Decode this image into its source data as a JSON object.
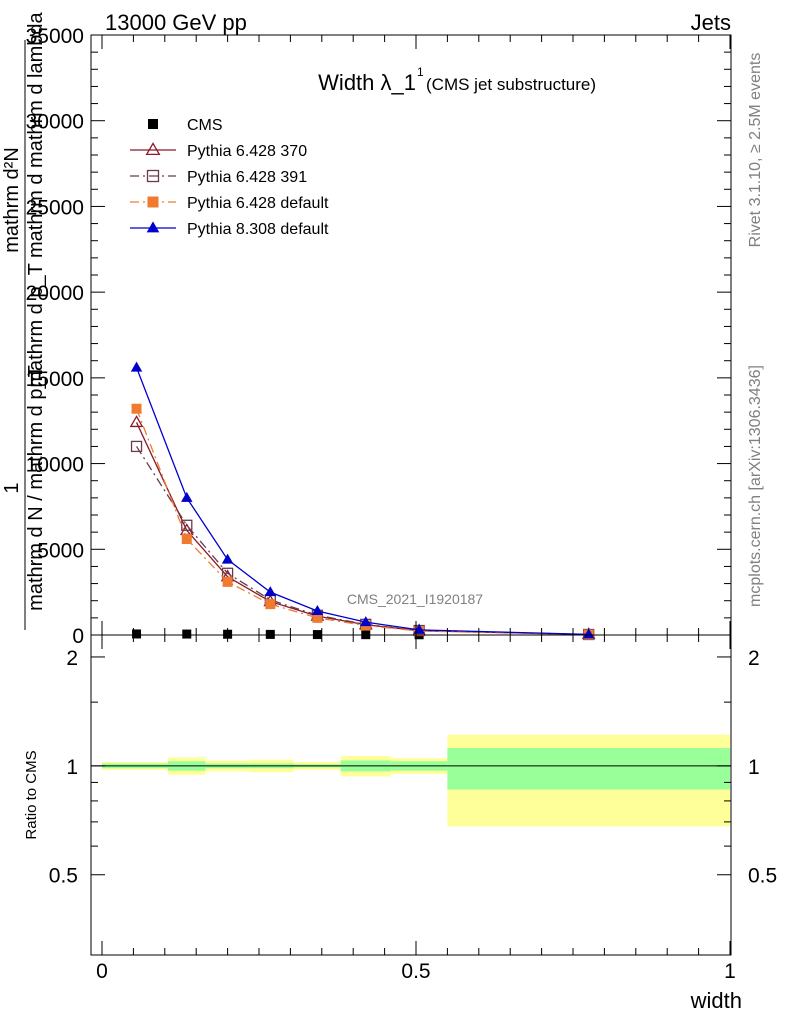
{
  "header": {
    "energy_label": "13000 GeV pp",
    "process_label": "Jets",
    "side_label_top": "Rivet 3.1.10, ≥ 2.5M events",
    "side_label_bottom": "mcplots.cern.ch [arXiv:1306.3436]",
    "watermark": "CMS_2021_I1920187"
  },
  "chart_data": [
    {
      "type": "line",
      "title": "Width λ_1",
      "title_superscript": "1",
      "subtitle": "(CMS jet substructure)",
      "ylabel_fraction_numerator": "1",
      "ylabel_fraction_denominator": "mathrm d N / mathrm d p_T",
      "ylabel_derivative_numerator": "mathrm d²N",
      "ylabel_derivative_denominator": "mathrm d p_T mathrm d mathrm d lambda",
      "xlabel": "",
      "xlim": [
        0,
        1
      ],
      "ylim": [
        0,
        35000
      ],
      "y_ticks": [
        0,
        5000,
        10000,
        15000,
        20000,
        25000,
        30000,
        35000
      ],
      "y_tick_labels": [
        "0",
        "5000",
        "10000",
        "15000",
        "20000",
        "25000",
        "30000",
        "35000"
      ],
      "legend_position": "top-left",
      "x": [
        0.055,
        0.135,
        0.2,
        0.268,
        0.343,
        0.42,
        0.505,
        0.775
      ],
      "series": [
        {
          "name": "CMS",
          "color": "#000000",
          "marker": "square-filled",
          "line": "none",
          "values": [
            60,
            55,
            45,
            35,
            25,
            20,
            15,
            5
          ]
        },
        {
          "name": "Pythia 6.428 370",
          "color": "#8b1a2b",
          "marker": "triangle-open",
          "line": "solid",
          "values": [
            12400,
            6100,
            3400,
            1950,
            1100,
            600,
            250,
            30
          ]
        },
        {
          "name": "Pythia 6.428 391",
          "color": "#6b3a4a",
          "marker": "square-open",
          "line": "dashdot",
          "values": [
            11000,
            6400,
            3600,
            2050,
            1150,
            620,
            260,
            30
          ]
        },
        {
          "name": "Pythia 6.428 default",
          "color": "#f07b30",
          "marker": "square-filled",
          "line": "dashdot",
          "values": [
            13200,
            5600,
            3100,
            1800,
            1000,
            550,
            230,
            25
          ]
        },
        {
          "name": "Pythia 8.308 default",
          "color": "#0000cc",
          "marker": "triangle-filled",
          "line": "solid",
          "values": [
            15600,
            8000,
            4400,
            2500,
            1400,
            750,
            300,
            35
          ]
        }
      ]
    },
    {
      "type": "area",
      "title": "",
      "xlabel": "width",
      "ylabel": "Ratio to CMS",
      "xlim": [
        0,
        1
      ],
      "ylim": [
        0.3,
        2.3
      ],
      "x_ticks": [
        0,
        0.5,
        1
      ],
      "x_tick_labels": [
        "0",
        "0.5",
        "1"
      ],
      "y_ticks": [
        0.5,
        1,
        2
      ],
      "y_tick_labels": [
        "0.5",
        "1",
        "2"
      ],
      "reference_line": 1,
      "bins": [
        {
          "lo": 0.0,
          "hi": 0.105,
          "stat": [
            0.985,
            1.015
          ],
          "total": [
            0.975,
            1.025
          ]
        },
        {
          "lo": 0.105,
          "hi": 0.165,
          "stat": [
            0.97,
            1.03
          ],
          "total": [
            0.945,
            1.055
          ]
        },
        {
          "lo": 0.165,
          "hi": 0.235,
          "stat": [
            0.985,
            1.015
          ],
          "total": [
            0.965,
            1.035
          ]
        },
        {
          "lo": 0.235,
          "hi": 0.305,
          "stat": [
            0.985,
            1.015
          ],
          "total": [
            0.96,
            1.04
          ]
        },
        {
          "lo": 0.305,
          "hi": 0.38,
          "stat": [
            0.99,
            1.01
          ],
          "total": [
            0.975,
            1.025
          ]
        },
        {
          "lo": 0.38,
          "hi": 0.46,
          "stat": [
            0.965,
            1.035
          ],
          "total": [
            0.935,
            1.065
          ]
        },
        {
          "lo": 0.46,
          "hi": 0.55,
          "stat": [
            0.97,
            1.03
          ],
          "total": [
            0.95,
            1.05
          ]
        },
        {
          "lo": 0.55,
          "hi": 1.0,
          "stat": [
            0.86,
            1.12
          ],
          "total": [
            0.68,
            1.22
          ]
        }
      ],
      "stat_color": "#99ff99",
      "total_color": "#ffff99"
    }
  ]
}
